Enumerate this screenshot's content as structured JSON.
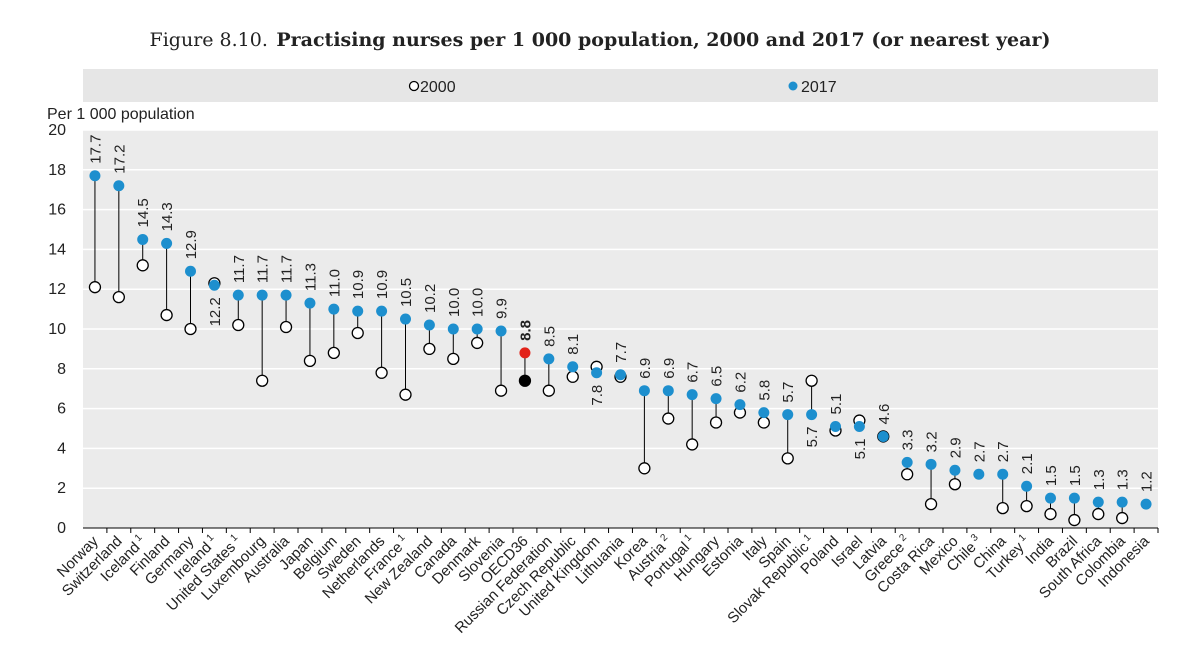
{
  "figure": {
    "number": "Figure 8.10.",
    "title": "Practising nurses per 1 000 population, 2000 and 2017 (or nearest year)"
  },
  "chart_data": {
    "type": "dot",
    "ylabel": "Per 1 000 population",
    "ylim": [
      0,
      20
    ],
    "yticks": [
      0,
      2,
      4,
      6,
      8,
      10,
      12,
      14,
      16,
      18,
      20
    ],
    "grid": "horizontal",
    "legend": {
      "position": "top",
      "entries": [
        {
          "name": "2000",
          "marker": "hollow-circle"
        },
        {
          "name": "2017",
          "marker": "filled-circle"
        }
      ]
    },
    "colors": {
      "series_2017": "#1d8fce",
      "oecd_2017": "#e2231a",
      "oecd_2000": "#000000",
      "plot_background": "#ebebeb",
      "grid": "#ffffff"
    },
    "highlight_category": "OECD36",
    "categories": [
      {
        "name": "Norway",
        "sup": "",
        "v2000": 12.1,
        "v2017": 17.7,
        "label": "17.7"
      },
      {
        "name": "Switzerland",
        "sup": "",
        "v2000": 11.6,
        "v2017": 17.2,
        "label": "17.2"
      },
      {
        "name": "Iceland",
        "sup": "1",
        "v2000": 13.2,
        "v2017": 14.5,
        "label": "14.5"
      },
      {
        "name": "Finland",
        "sup": "",
        "v2000": 10.7,
        "v2017": 14.3,
        "label": "14.3"
      },
      {
        "name": "Germany",
        "sup": "",
        "v2000": 10.0,
        "v2017": 12.9,
        "label": "12.9"
      },
      {
        "name": "Ireland",
        "sup": "1",
        "v2000": 12.3,
        "v2017": 12.2,
        "label": "12.2"
      },
      {
        "name": "United States",
        "sup": "1",
        "v2000": 10.2,
        "v2017": 11.7,
        "label": "11.7"
      },
      {
        "name": "Luxembourg",
        "sup": "",
        "v2000": 7.4,
        "v2017": 11.7,
        "label": "11.7"
      },
      {
        "name": "Australia",
        "sup": "",
        "v2000": 10.1,
        "v2017": 11.7,
        "label": "11.7"
      },
      {
        "name": "Japan",
        "sup": "",
        "v2000": 8.4,
        "v2017": 11.3,
        "label": "11.3"
      },
      {
        "name": "Belgium",
        "sup": "",
        "v2000": 8.8,
        "v2017": 11.0,
        "label": "11.0"
      },
      {
        "name": "Sweden",
        "sup": "",
        "v2000": 9.8,
        "v2017": 10.9,
        "label": "10.9"
      },
      {
        "name": "Netherlands",
        "sup": "",
        "v2000": 7.8,
        "v2017": 10.9,
        "label": "10.9"
      },
      {
        "name": "France",
        "sup": "1",
        "v2000": 6.7,
        "v2017": 10.5,
        "label": "10.5"
      },
      {
        "name": "New Zealand",
        "sup": "",
        "v2000": 9.0,
        "v2017": 10.2,
        "label": "10.2"
      },
      {
        "name": "Canada",
        "sup": "",
        "v2000": 8.5,
        "v2017": 10.0,
        "label": "10.0"
      },
      {
        "name": "Denmark",
        "sup": "",
        "v2000": 9.3,
        "v2017": 10.0,
        "label": "10.0"
      },
      {
        "name": "Slovenia",
        "sup": "",
        "v2000": 6.9,
        "v2017": 9.9,
        "label": "9.9"
      },
      {
        "name": "OECD36",
        "sup": "",
        "v2000": 7.4,
        "v2017": 8.8,
        "label": "8.8"
      },
      {
        "name": "Russian Federation",
        "sup": "",
        "v2000": 6.9,
        "v2017": 8.5,
        "label": "8.5"
      },
      {
        "name": "Czech Republic",
        "sup": "",
        "v2000": 7.6,
        "v2017": 8.1,
        "label": "8.1"
      },
      {
        "name": "United Kingdom",
        "sup": "",
        "v2000": 8.1,
        "v2017": 7.8,
        "label": "7.8"
      },
      {
        "name": "Lithuania",
        "sup": "",
        "v2000": 7.6,
        "v2017": 7.7,
        "label": "7.7"
      },
      {
        "name": "Korea",
        "sup": "",
        "v2000": 3.0,
        "v2017": 6.9,
        "label": "6.9"
      },
      {
        "name": "Austria",
        "sup": "2",
        "v2000": 5.5,
        "v2017": 6.9,
        "label": "6.9"
      },
      {
        "name": "Portugal",
        "sup": "1",
        "v2000": 4.2,
        "v2017": 6.7,
        "label": "6.7"
      },
      {
        "name": "Hungary",
        "sup": "",
        "v2000": 5.3,
        "v2017": 6.5,
        "label": "6.5"
      },
      {
        "name": "Estonia",
        "sup": "",
        "v2000": 5.8,
        "v2017": 6.2,
        "label": "6.2"
      },
      {
        "name": "Italy",
        "sup": "",
        "v2000": 5.3,
        "v2017": 5.8,
        "label": "5.8"
      },
      {
        "name": "Spain",
        "sup": "",
        "v2000": 3.5,
        "v2017": 5.7,
        "label": "5.7"
      },
      {
        "name": "Slovak Republic",
        "sup": "1",
        "v2000": 7.4,
        "v2017": 5.7,
        "label": "5.7"
      },
      {
        "name": "Poland",
        "sup": "",
        "v2000": 4.9,
        "v2017": 5.1,
        "label": "5.1"
      },
      {
        "name": "Israel",
        "sup": "",
        "v2000": 5.4,
        "v2017": 5.1,
        "label": "5.1"
      },
      {
        "name": "Latvia",
        "sup": "",
        "v2000": 4.6,
        "v2017": 4.6,
        "label": "4.6"
      },
      {
        "name": "Greece",
        "sup": "2",
        "v2000": 2.7,
        "v2017": 3.3,
        "label": "3.3"
      },
      {
        "name": "Costa Rica",
        "sup": "",
        "v2000": 1.2,
        "v2017": 3.2,
        "label": "3.2"
      },
      {
        "name": "Mexico",
        "sup": "",
        "v2000": 2.2,
        "v2017": 2.9,
        "label": "2.9"
      },
      {
        "name": "Chile",
        "sup": "3",
        "v2000": null,
        "v2017": 2.7,
        "label": "2.7"
      },
      {
        "name": "China",
        "sup": "",
        "v2000": 1.0,
        "v2017": 2.7,
        "label": "2.7"
      },
      {
        "name": "Turkey",
        "sup": "1",
        "v2000": 1.1,
        "v2017": 2.1,
        "label": "2.1"
      },
      {
        "name": "India",
        "sup": "",
        "v2000": 0.7,
        "v2017": 1.5,
        "label": "1.5"
      },
      {
        "name": "Brazil",
        "sup": "",
        "v2000": 0.4,
        "v2017": 1.5,
        "label": "1.5"
      },
      {
        "name": "South Africa",
        "sup": "",
        "v2000": 0.7,
        "v2017": 1.3,
        "label": "1.3"
      },
      {
        "name": "Colombia",
        "sup": "",
        "v2000": 0.5,
        "v2017": 1.3,
        "label": "1.3"
      },
      {
        "name": "Indonesia",
        "sup": "",
        "v2000": null,
        "v2017": 1.2,
        "label": "1.2"
      }
    ]
  }
}
